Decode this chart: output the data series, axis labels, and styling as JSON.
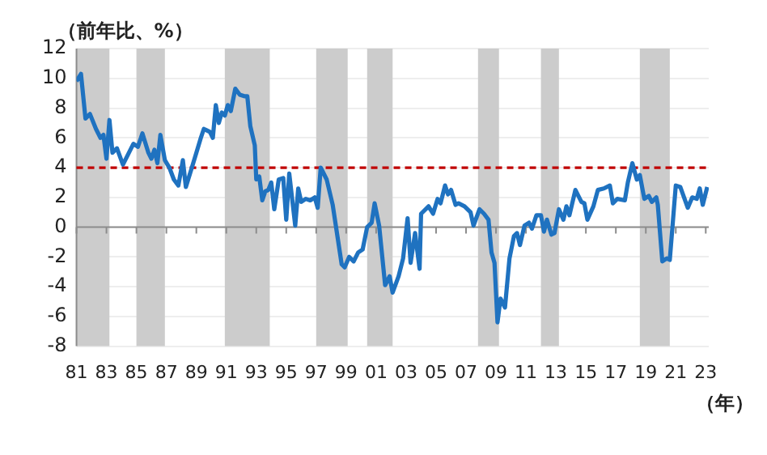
{
  "chart_data": {
    "type": "line",
    "ylabel": "（前年比、%）",
    "annotations": [
      "（年）"
    ],
    "x": [
      1981.0,
      1981.3,
      1981.6,
      1981.9,
      1982.3,
      1982.6,
      1982.8,
      1983.0,
      1983.2,
      1983.4,
      1983.7,
      1984.1,
      1984.5,
      1984.8,
      1985.1,
      1985.4,
      1985.8,
      1986.0,
      1986.2,
      1986.4,
      1986.6,
      1986.9,
      1987.2,
      1987.5,
      1987.8,
      1988.1,
      1988.3,
      1988.7,
      1989.0,
      1989.3,
      1989.5,
      1989.9,
      1990.1,
      1990.3,
      1990.5,
      1990.7,
      1990.9,
      1991.1,
      1991.3,
      1991.6,
      1991.9,
      1992.2,
      1992.4,
      1992.6,
      1992.9,
      1993.0,
      1993.2,
      1993.4,
      1993.6,
      1993.8,
      1994.0,
      1994.2,
      1994.5,
      1994.8,
      1995.0,
      1995.2,
      1995.6,
      1995.8,
      1996.0,
      1996.3,
      1996.6,
      1996.9,
      1997.1,
      1997.3,
      1997.7,
      1998.1,
      1998.4,
      1998.7,
      1998.9,
      1999.2,
      1999.5,
      1999.8,
      2000.1,
      2000.4,
      2000.7,
      2000.9,
      2001.2,
      2001.6,
      2001.9,
      2002.1,
      2002.5,
      2002.8,
      2003.1,
      2003.3,
      2003.6,
      2003.9,
      2004.0,
      2004.5,
      2004.8,
      2005.1,
      2005.3,
      2005.6,
      2005.8,
      2006.0,
      2006.3,
      2006.5,
      2006.9,
      2007.3,
      2007.5,
      2007.9,
      2008.2,
      2008.5,
      2008.7,
      2008.9,
      2009.1,
      2009.3,
      2009.6,
      2009.9,
      2010.2,
      2010.4,
      2010.6,
      2010.9,
      2011.2,
      2011.4,
      2011.7,
      2012.0,
      2012.2,
      2012.4,
      2012.7,
      2012.9,
      2013.2,
      2013.5,
      2013.7,
      2013.9,
      2014.3,
      2014.7,
      2014.9,
      2015.1,
      2015.5,
      2015.8,
      2016.2,
      2016.6,
      2016.8,
      2017.1,
      2017.6,
      2017.8,
      2018.1,
      2018.4,
      2018.6,
      2018.9,
      2019.2,
      2019.4,
      2019.7,
      2019.8,
      2020.1,
      2020.4,
      2020.6,
      2021.0,
      2021.3,
      2021.8,
      2022.1,
      2022.4,
      2022.6,
      2022.8,
      2023.1
    ],
    "series": [
      {
        "color": "#1f72c0",
        "values": [
          9.8,
          10.3,
          7.3,
          7.6,
          6.6,
          6.0,
          6.2,
          4.6,
          7.2,
          5.0,
          5.3,
          4.2,
          5.0,
          5.6,
          5.4,
          6.3,
          5.0,
          4.6,
          5.2,
          4.3,
          6.2,
          4.5,
          4.0,
          3.2,
          2.8,
          4.5,
          2.7,
          4.0,
          5.0,
          6.0,
          6.6,
          6.4,
          6.0,
          8.2,
          7.0,
          7.7,
          7.5,
          8.2,
          7.8,
          9.3,
          8.9,
          8.8,
          8.8,
          6.8,
          5.5,
          3.2,
          3.4,
          1.8,
          2.4,
          2.5,
          3.0,
          1.2,
          3.2,
          3.3,
          0.5,
          3.6,
          0.1,
          2.6,
          1.7,
          1.9,
          1.8,
          2.0,
          1.3,
          4.0,
          3.2,
          1.5,
          -0.5,
          -2.5,
          -2.7,
          -2.0,
          -2.3,
          -1.7,
          -1.5,
          0.0,
          0.3,
          1.6,
          0.1,
          -3.9,
          -3.3,
          -4.4,
          -3.3,
          -2.1,
          0.6,
          -2.4,
          -0.4,
          -2.8,
          0.9,
          1.4,
          0.9,
          1.9,
          1.6,
          2.8,
          2.2,
          2.5,
          1.5,
          1.6,
          1.4,
          1.0,
          0.1,
          1.2,
          0.9,
          0.5,
          -1.7,
          -2.4,
          -6.4,
          -4.8,
          -5.4,
          -2.1,
          -0.6,
          -0.4,
          -1.2,
          0.1,
          0.3,
          -0.1,
          0.8,
          0.8,
          -0.3,
          0.5,
          -0.5,
          -0.4,
          1.2,
          0.5,
          1.4,
          0.8,
          2.5,
          1.7,
          1.6,
          0.5,
          1.4,
          2.5,
          2.6,
          2.8,
          1.6,
          1.9,
          1.8,
          3.0,
          4.3,
          3.2,
          3.5,
          1.9,
          2.1,
          1.7,
          2.0,
          1.5,
          -2.3,
          -2.1,
          -2.2,
          2.8,
          2.7,
          1.3,
          2.0,
          1.9,
          2.6,
          1.5,
          2.7
        ]
      }
    ],
    "xlim": [
      1981,
      2023.2
    ],
    "xticks": [
      {
        "value": 1981,
        "label": "81"
      },
      {
        "value": 1983,
        "label": "83"
      },
      {
        "value": 1985,
        "label": "85"
      },
      {
        "value": 1987,
        "label": "87"
      },
      {
        "value": 1989,
        "label": "89"
      },
      {
        "value": 1991,
        "label": "91"
      },
      {
        "value": 1993,
        "label": "93"
      },
      {
        "value": 1995,
        "label": "95"
      },
      {
        "value": 1997,
        "label": "97"
      },
      {
        "value": 1999,
        "label": "99"
      },
      {
        "value": 2001,
        "label": "01"
      },
      {
        "value": 2003,
        "label": "03"
      },
      {
        "value": 2005,
        "label": "05"
      },
      {
        "value": 2007,
        "label": "07"
      },
      {
        "value": 2009,
        "label": "09"
      },
      {
        "value": 2011,
        "label": "11"
      },
      {
        "value": 2013,
        "label": "13"
      },
      {
        "value": 2015,
        "label": "15"
      },
      {
        "value": 2017,
        "label": "17"
      },
      {
        "value": 2019,
        "label": "19"
      },
      {
        "value": 2021,
        "label": "21"
      },
      {
        "value": 2023,
        "label": "23"
      }
    ],
    "ylim": [
      -8,
      12
    ],
    "yticks": [
      -8,
      -6,
      -4,
      -2,
      0,
      2,
      4,
      6,
      8,
      10,
      12
    ],
    "grid": "y",
    "legend": false,
    "marker": "none",
    "line_style": "solid",
    "ref_lines": [
      {
        "axis": "y",
        "value": 4,
        "color": "#c00000",
        "line_style": "dashed"
      }
    ],
    "bands": [
      {
        "axis": "x",
        "from": 1981.0,
        "to": 1983.2,
        "color": "#cccccc"
      },
      {
        "axis": "x",
        "from": 1985.0,
        "to": 1986.9,
        "color": "#cccccc"
      },
      {
        "axis": "x",
        "from": 1990.9,
        "to": 1993.9,
        "color": "#cccccc"
      },
      {
        "axis": "x",
        "from": 1997.0,
        "to": 1999.1,
        "color": "#cccccc"
      },
      {
        "axis": "x",
        "from": 2000.4,
        "to": 2002.1,
        "color": "#cccccc"
      },
      {
        "axis": "x",
        "from": 2007.8,
        "to": 2009.2,
        "color": "#cccccc"
      },
      {
        "axis": "x",
        "from": 2012.0,
        "to": 2013.2,
        "color": "#cccccc"
      },
      {
        "axis": "x",
        "from": 2018.6,
        "to": 2020.6,
        "color": "#cccccc"
      }
    ]
  }
}
